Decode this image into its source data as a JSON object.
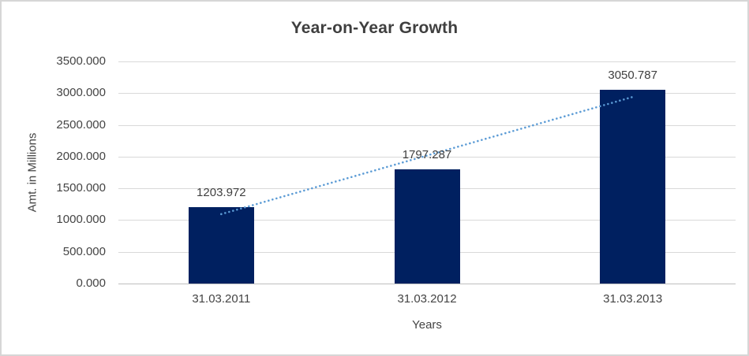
{
  "chart_data": {
    "type": "bar",
    "title": "Year-on-Year Growth",
    "categories": [
      "31.03.2011",
      "31.03.2012",
      "31.03.2013"
    ],
    "values": [
      1203.972,
      1797.287,
      3050.787
    ],
    "data_labels": [
      "1203.972",
      "1797.287",
      "3050.787"
    ],
    "xlabel": "Years",
    "ylabel": "Amt. in Millions",
    "ylim": [
      0,
      3500
    ],
    "ytick_step": 500,
    "ytick_labels": [
      "0.000",
      "500.000",
      "1000.000",
      "1500.000",
      "2000.000",
      "2500.000",
      "3000.000",
      "3500.000"
    ],
    "grid": true,
    "legend": "none",
    "trendline": {
      "type": "linear",
      "style": "dotted-round",
      "color": "#5b9bd5"
    },
    "colors": {
      "bar": "#002060",
      "gridline": "#d9d9d9",
      "axis_line": "#bfbfbf",
      "text": "#404040",
      "background": "#ffffff",
      "border": "#d6d6d6"
    }
  }
}
